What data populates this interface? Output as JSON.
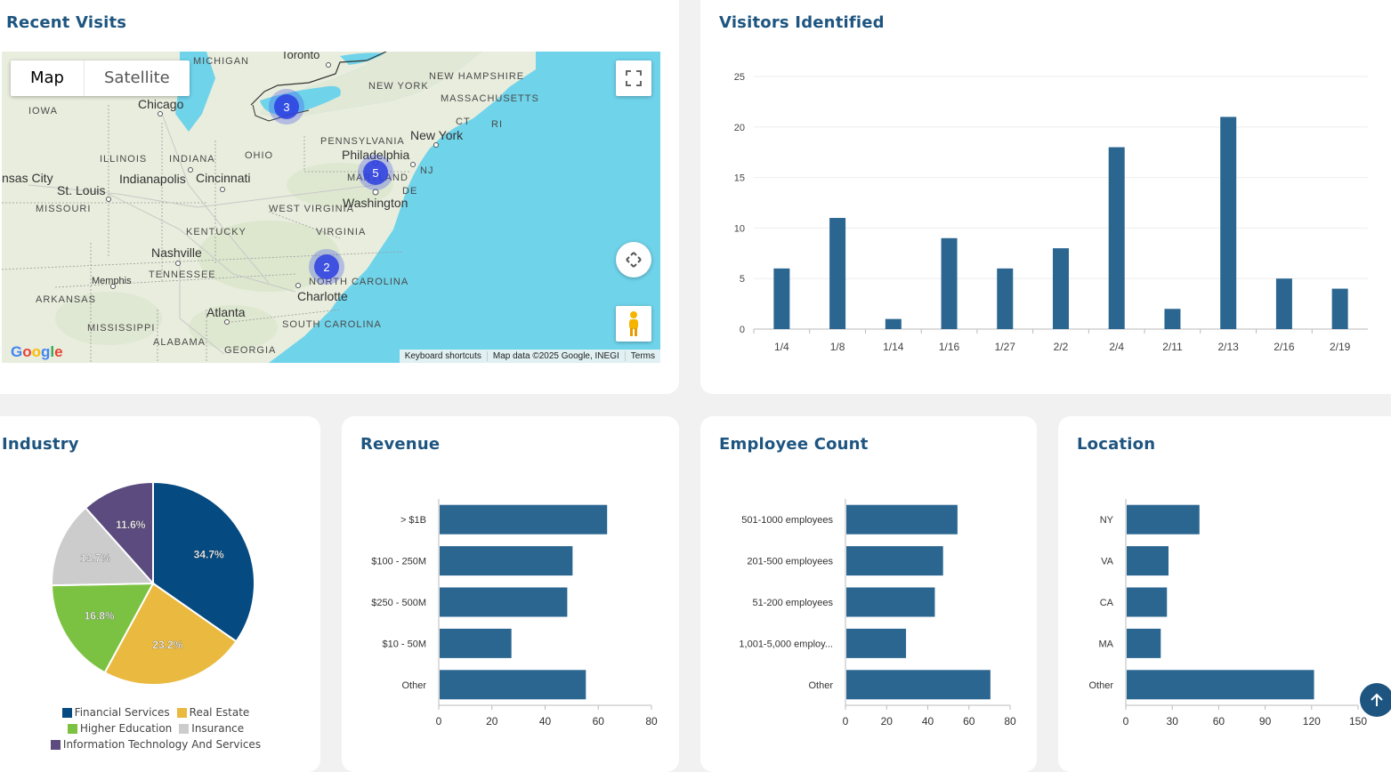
{
  "recent_visits": {
    "title": "Recent Visits",
    "map_type_buttons": [
      "Map",
      "Satellite"
    ],
    "clusters": [
      {
        "count": "3"
      },
      {
        "count": "5"
      },
      {
        "count": "2"
      }
    ],
    "place_labels": [
      "MICHIGAN",
      "Toronto",
      "NEW HAMPSHIRE",
      "IOWA",
      "Chicago",
      "NEW YORK",
      "MASSACHUSETTS",
      "CT",
      "RI",
      "PENNSYLVANIA",
      "New York",
      "ILLINOIS",
      "INDIANA",
      "OHIO",
      "Philadelphia",
      "NJ",
      "nsas City",
      "St. Louis",
      "Indianapolis",
      "Cincinnati",
      "MARYLAND",
      "DE",
      "WEST VIRGINIA",
      "Washington",
      "MISSOURI",
      "KENTUCKY",
      "VIRGINIA",
      "Nashville",
      "TENNESSEE",
      "Memphis",
      "NORTH CAROLINA",
      "ARKANSAS",
      "Charlotte",
      "Atlanta",
      "SOUTH CAROLINA",
      "MISSISSIPPI",
      "ALABAMA",
      "GEORGIA"
    ],
    "google_logo": "Google",
    "attribution": [
      "Keyboard shortcuts",
      "Map data ©2025 Google, INEGI",
      "Terms"
    ]
  },
  "visitors": {
    "title": "Visitors Identified",
    "chart_data": {
      "type": "bar",
      "categories": [
        "1/4",
        "1/8",
        "1/14",
        "1/16",
        "1/27",
        "2/2",
        "2/4",
        "2/11",
        "2/13",
        "2/16",
        "2/19"
      ],
      "values": [
        6,
        11,
        1,
        9,
        6,
        8,
        18,
        2,
        21,
        5,
        4
      ],
      "yticks": [
        0,
        5,
        10,
        15,
        20,
        25
      ],
      "ylim": [
        0,
        25
      ],
      "color": "#2b6690"
    }
  },
  "industry": {
    "title": "Industry",
    "chart_data": {
      "type": "pie",
      "slices": [
        {
          "label": "Financial Services",
          "value": 34.7,
          "display": "34.7%",
          "color": "#054a80"
        },
        {
          "label": "Real Estate",
          "value": 23.2,
          "display": "23.2%",
          "color": "#eab93f"
        },
        {
          "label": "Higher Education",
          "value": 16.8,
          "display": "16.8%",
          "color": "#7cc242"
        },
        {
          "label": "Insurance",
          "value": 13.7,
          "display": "13.7%",
          "color": "#cccccc"
        },
        {
          "label": "Information Technology And Services",
          "value": 11.6,
          "display": "11.6%",
          "color": "#5c4b7f"
        }
      ]
    }
  },
  "revenue": {
    "title": "Revenue",
    "chart_data": {
      "type": "bar",
      "orientation": "horizontal",
      "categories": [
        "> $1B",
        "$100 - 250M",
        "$250 - 500M",
        "$10 - 50M",
        "Other"
      ],
      "values": [
        63,
        50,
        48,
        27,
        55
      ],
      "xticks": [
        0,
        20,
        40,
        60,
        80
      ],
      "xlim": [
        0,
        80
      ],
      "color": "#2b6690"
    }
  },
  "employee": {
    "title": "Employee Count",
    "chart_data": {
      "type": "bar",
      "orientation": "horizontal",
      "categories": [
        "501-1000 employees",
        "201-500 employees",
        "51-200 employees",
        "1,001-5,000 employ...",
        "Other"
      ],
      "values": [
        54,
        47,
        43,
        29,
        70
      ],
      "xticks": [
        0,
        20,
        40,
        60,
        80
      ],
      "xlim": [
        0,
        80
      ],
      "color": "#2b6690"
    }
  },
  "location": {
    "title": "Location",
    "chart_data": {
      "type": "bar",
      "orientation": "horizontal",
      "categories": [
        "NY",
        "VA",
        "CA",
        "MA",
        "Other"
      ],
      "values": [
        47,
        27,
        26,
        22,
        121
      ],
      "xticks": [
        0,
        30,
        60,
        90,
        120,
        150
      ],
      "xlim": [
        0,
        150
      ],
      "color": "#2b6690"
    }
  }
}
